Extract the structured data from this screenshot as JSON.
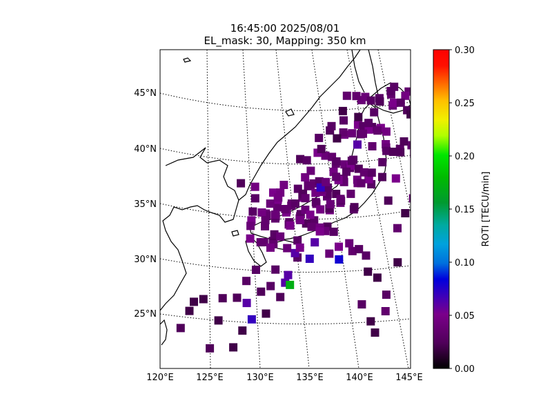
{
  "title": {
    "line1": "16:45:00 2025/08/01",
    "line2": "EL_mask: 30, Mapping: 350 km"
  },
  "map": {
    "lon_range": [
      120,
      145
    ],
    "lat_range": [
      20,
      49
    ],
    "lon_ticks": [
      "120°E",
      "125°E",
      "130°E",
      "135°E",
      "140°E",
      "145°E"
    ],
    "lat_ticks": [
      "25°N",
      "30°N",
      "35°N",
      "40°N",
      "45°N"
    ],
    "gridlines": "dotted",
    "coastline_color": "#000000"
  },
  "colorbar": {
    "label": "ROTI [TECU/min]",
    "ticks": [
      "0.00",
      "0.05",
      "0.10",
      "0.15",
      "0.20",
      "0.25",
      "0.30"
    ],
    "range": [
      0,
      0.3
    ],
    "colormap": "nipy_spectral-like",
    "colors": [
      "#000000",
      "#7a008a",
      "#0000dd",
      "#00a2dd",
      "#00d800",
      "#c4ff00",
      "#ff9900",
      "#ff0000"
    ]
  },
  "chart_data": {
    "type": "heatmap",
    "x_label": "",
    "y_label": "",
    "value_label": "ROTI [TECU/min]",
    "note_points_lon_lat_roti": [
      [
        121.5,
        24.0,
        0.025
      ],
      [
        122.5,
        25.5,
        0.02
      ],
      [
        123.0,
        26.3,
        0.02
      ],
      [
        124.0,
        26.5,
        0.02
      ],
      [
        124.5,
        22.0,
        0.025
      ],
      [
        125.5,
        24.5,
        0.02
      ],
      [
        126.0,
        26.5,
        0.025
      ],
      [
        127.0,
        22.0,
        0.02
      ],
      [
        127.5,
        26.5,
        0.025
      ],
      [
        128.0,
        23.5,
        0.02
      ],
      [
        128.5,
        26.0,
        0.06
      ],
      [
        129.0,
        24.5,
        0.07
      ],
      [
        128.5,
        28.0,
        0.03
      ],
      [
        129.5,
        29.0,
        0.03
      ],
      [
        130.0,
        27.0,
        0.025
      ],
      [
        130.5,
        25.0,
        0.02
      ],
      [
        131.0,
        27.5,
        0.03
      ],
      [
        131.5,
        29.0,
        0.03
      ],
      [
        132.0,
        26.5,
        0.025
      ],
      [
        132.5,
        27.8,
        0.06
      ],
      [
        133.0,
        27.6,
        0.17
      ],
      [
        132.8,
        28.5,
        0.06
      ],
      [
        133.5,
        30.5,
        0.06
      ],
      [
        134.0,
        31.0,
        0.05
      ],
      [
        135.0,
        30.0,
        0.07
      ],
      [
        135.5,
        31.5,
        0.06
      ],
      [
        136.0,
        32.5,
        0.05
      ],
      [
        137.0,
        30.5,
        0.04
      ],
      [
        138.0,
        30.0,
        0.08
      ],
      [
        139.0,
        31.5,
        0.04
      ],
      [
        140.0,
        31.0,
        0.03
      ],
      [
        141.0,
        29.0,
        0.02
      ],
      [
        142.0,
        28.5,
        0.02
      ],
      [
        143.0,
        27.0,
        0.03
      ],
      [
        144.0,
        30.0,
        0.02
      ],
      [
        144.5,
        34.5,
        0.02
      ],
      [
        140.5,
        26.0,
        0.03
      ],
      [
        141.5,
        24.5,
        0.02
      ],
      [
        142.0,
        23.5,
        0.02
      ],
      [
        143.0,
        25.5,
        0.035
      ],
      [
        130.5,
        33.5,
        0.035
      ],
      [
        131.5,
        34.0,
        0.04
      ],
      [
        132.5,
        34.5,
        0.035
      ],
      [
        133.5,
        35.0,
        0.03
      ],
      [
        134.5,
        35.5,
        0.035
      ],
      [
        135.5,
        36.0,
        0.045
      ],
      [
        136.0,
        36.5,
        0.07
      ],
      [
        136.5,
        37.0,
        0.04
      ],
      [
        137.5,
        37.5,
        0.035
      ],
      [
        138.5,
        38.0,
        0.03
      ],
      [
        139.0,
        39.0,
        0.03
      ],
      [
        139.5,
        40.5,
        0.06
      ],
      [
        140.0,
        41.5,
        0.035
      ],
      [
        140.5,
        42.5,
        0.03
      ],
      [
        141.0,
        43.5,
        0.03
      ],
      [
        141.5,
        44.5,
        0.025
      ],
      [
        142.5,
        45.5,
        0.03
      ],
      [
        143.5,
        44.5,
        0.03
      ],
      [
        144.5,
        43.5,
        0.02
      ],
      [
        139.5,
        43.0,
        0.02
      ],
      [
        138.0,
        43.5,
        0.02
      ],
      [
        137.5,
        41.0,
        0.02
      ],
      [
        136.0,
        40.0,
        0.025
      ],
      [
        135.0,
        38.0,
        0.04
      ],
      [
        132.0,
        36.0,
        0.045
      ],
      [
        131.0,
        35.0,
        0.04
      ],
      [
        129.5,
        35.5,
        0.03
      ],
      [
        129.0,
        33.0,
        0.04
      ],
      [
        130.0,
        31.5,
        0.035
      ],
      [
        131.0,
        31.0,
        0.045
      ],
      [
        132.0,
        32.0,
        0.04
      ],
      [
        133.0,
        33.0,
        0.05
      ],
      [
        134.0,
        33.5,
        0.045
      ],
      [
        135.0,
        34.0,
        0.05
      ],
      [
        136.0,
        34.5,
        0.045
      ],
      [
        137.0,
        35.0,
        0.04
      ],
      [
        138.0,
        35.5,
        0.035
      ],
      [
        139.0,
        36.0,
        0.035
      ],
      [
        140.0,
        37.0,
        0.035
      ],
      [
        141.0,
        38.0,
        0.03
      ],
      [
        142.0,
        39.0,
        0.03
      ],
      [
        143.0,
        40.0,
        0.025
      ],
      [
        144.0,
        41.0,
        0.025
      ]
    ]
  }
}
